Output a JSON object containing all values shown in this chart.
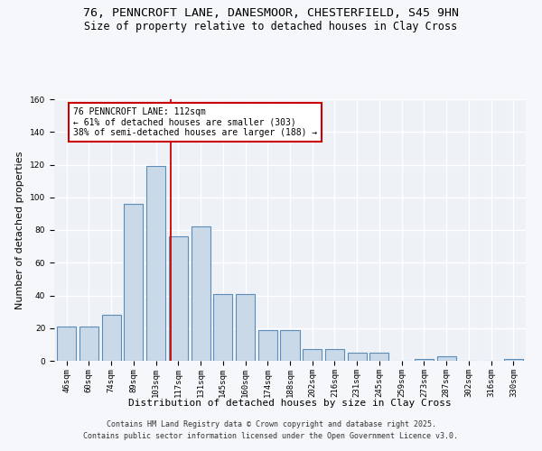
{
  "title_line1": "76, PENNCROFT LANE, DANESMOOR, CHESTERFIELD, S45 9HN",
  "title_line2": "Size of property relative to detached houses in Clay Cross",
  "xlabel": "Distribution of detached houses by size in Clay Cross",
  "ylabel": "Number of detached properties",
  "categories": [
    "46sqm",
    "60sqm",
    "74sqm",
    "89sqm",
    "103sqm",
    "117sqm",
    "131sqm",
    "145sqm",
    "160sqm",
    "174sqm",
    "188sqm",
    "202sqm",
    "216sqm",
    "231sqm",
    "245sqm",
    "259sqm",
    "273sqm",
    "287sqm",
    "302sqm",
    "316sqm",
    "330sqm"
  ],
  "values": [
    21,
    21,
    28,
    96,
    119,
    76,
    82,
    41,
    41,
    19,
    19,
    7,
    7,
    5,
    5,
    0,
    1,
    3,
    0,
    0,
    1
  ],
  "bar_color": "#c9d9e8",
  "bar_edge_color": "#5b8db8",
  "bar_edge_width": 0.8,
  "vline_x_index": 4.65,
  "vline_color": "#cc0000",
  "annotation_text": "76 PENNCROFT LANE: 112sqm\n← 61% of detached houses are smaller (303)\n38% of semi-detached houses are larger (188) →",
  "annotation_box_color": "#ffffff",
  "annotation_border_color": "#cc0000",
  "ylim": [
    0,
    160
  ],
  "yticks": [
    0,
    20,
    40,
    60,
    80,
    100,
    120,
    140,
    160
  ],
  "footer_text": "Contains HM Land Registry data © Crown copyright and database right 2025.\nContains public sector information licensed under the Open Government Licence v3.0.",
  "bg_color": "#eef2f7",
  "grid_color": "#ffffff",
  "title_fontsize": 9.5,
  "subtitle_fontsize": 8.5,
  "axis_label_fontsize": 8,
  "tick_fontsize": 6.5,
  "footer_fontsize": 6,
  "annotation_fontsize": 7
}
